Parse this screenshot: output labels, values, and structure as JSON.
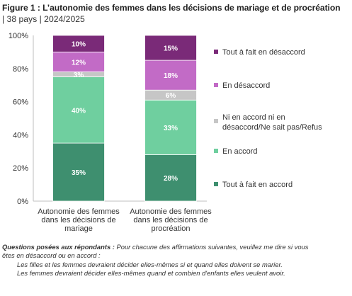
{
  "header": {
    "title": "Figure 1 : L’autonomie des femmes dans les décisions de mariage et de procréation",
    "subtitle": "| 38 pays | 2024/2025"
  },
  "chart_data": {
    "type": "bar",
    "stacked": true,
    "categories": [
      [
        "Autonomie des femmes",
        "dans les décisions de",
        "mariage"
      ],
      [
        "Autonomie des femmes",
        "dans les décisions de",
        "procréation"
      ]
    ],
    "series": [
      {
        "name": "Tout à fait en accord",
        "values": [
          35,
          28
        ],
        "labels": [
          "35%",
          "28%"
        ],
        "color": "#3e8f6f"
      },
      {
        "name": "En accord",
        "values": [
          40,
          33
        ],
        "labels": [
          "40%",
          "33%"
        ],
        "color": "#6fcf9f"
      },
      {
        "name": "Ni en accord ni en désaccord/Ne sait pas/Refus",
        "values": [
          3,
          6
        ],
        "labels": [
          "3%",
          "6%"
        ],
        "color": "#c6c6c6"
      },
      {
        "name": "En désaccord",
        "values": [
          12,
          18
        ],
        "labels": [
          "12%",
          "18%"
        ],
        "color": "#c26bc6"
      },
      {
        "name": "Tout à fait en désaccord",
        "values": [
          10,
          15
        ],
        "labels": [
          "10%",
          "15%"
        ],
        "color": "#7a2a78"
      }
    ],
    "legend": [
      {
        "text": [
          "Tout à fait en désaccord"
        ],
        "color": "#7a2a78"
      },
      {
        "text": [
          "En désaccord"
        ],
        "color": "#c26bc6"
      },
      {
        "text": [
          "Ni en accord ni en",
          "désaccord/Ne sait pas/Refus"
        ],
        "color": "#c6c6c6"
      },
      {
        "text": [
          "En accord"
        ],
        "color": "#6fcf9f"
      },
      {
        "text": [
          "Tout à fait en accord"
        ],
        "color": "#3e8f6f"
      }
    ],
    "legend_position": "right",
    "ylim": [
      0,
      100
    ],
    "yticks": [
      "0%",
      "20%",
      "40%",
      "60%",
      "80%",
      "100%"
    ],
    "grid": false
  },
  "notes": {
    "question_label": "Questions posées aux répondants :",
    "question_text": " Pour chacune des affirmations suivantes, veuillez me dire si vous",
    "question_line2": "êtes en désaccord ou en accord :",
    "statement_1": "Les filles et les femmes devraient décider elles-mêmes si et quand elles doivent se marier.",
    "statement_2": "Les femmes devraient décider elles-mêmes quand et combien d'enfants elles veulent avoir."
  }
}
